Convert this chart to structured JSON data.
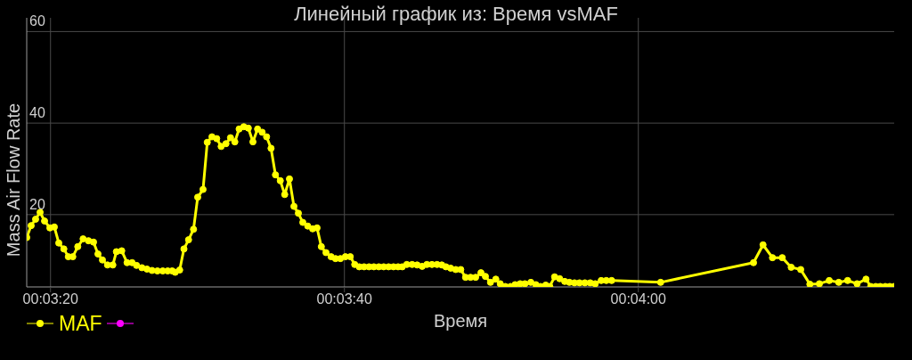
{
  "chart_data": {
    "type": "line",
    "title": "Линейный график из: Время vsMAF",
    "xlabel": "Время",
    "ylabel": "Mass Air Flow Rate",
    "x": [
      0.055106,
      0.05519,
      0.055274,
      0.055359,
      0.055443,
      0.055544,
      0.055628,
      0.055712,
      0.055808,
      0.055892,
      0.055977,
      0.056071,
      0.056172,
      0.056273,
      0.056369,
      0.056453,
      0.056537,
      0.056633,
      0.056734,
      0.056801,
      0.056902,
      0.057003,
      0.057098,
      0.057182,
      0.057283,
      0.057379,
      0.057475,
      0.057576,
      0.057677,
      0.057771,
      0.057855,
      0.057913,
      0.057997,
      0.058078,
      0.058165,
      0.058259,
      0.058338,
      0.058439,
      0.058519,
      0.058608,
      0.058697,
      0.058781,
      0.058872,
      0.058958,
      0.05904,
      0.059121,
      0.059209,
      0.059295,
      0.059382,
      0.05947,
      0.059556,
      0.05964,
      0.059724,
      0.059808,
      0.059899,
      0.059983,
      0.060072,
      0.060157,
      0.060241,
      0.060325,
      0.060418,
      0.06051,
      0.060594,
      0.060675,
      0.060763,
      0.060859,
      0.060943,
      0.061035,
      0.06113,
      0.061222,
      0.061306,
      0.061391,
      0.061483,
      0.061576,
      0.061668,
      0.061761,
      0.061854,
      0.061946,
      0.062039,
      0.062126,
      0.062205,
      0.06229,
      0.062391,
      0.062485,
      0.062581,
      0.06267,
      0.062766,
      0.062862,
      0.062951,
      0.06303,
      0.06312,
      0.063216,
      0.06331,
      0.063401,
      0.063495,
      0.063591,
      0.063692,
      0.063776,
      0.063872,
      0.063973,
      0.064057,
      0.064152,
      0.064253,
      0.064337,
      0.064433,
      0.064522,
      0.064635,
      0.064731,
      0.064815,
      0.064916,
      0.064993,
      0.065084,
      0.065179,
      0.065275,
      0.065364,
      0.06546,
      0.065556,
      0.065657,
      0.065758,
      0.065852,
      0.065965,
      0.066061,
      0.066162,
      0.067088,
      0.068844,
      0.069024,
      0.069202,
      0.069387,
      0.069556,
      0.069736,
      0.069909,
      0.070089,
      0.070275,
      0.070455,
      0.070623,
      0.070801,
      0.07097,
      0.071061,
      0.071155,
      0.071239,
      0.071335,
      0.071419,
      0.071503
    ],
    "series": [
      {
        "name": "MAF",
        "color": "#ffff00",
        "values": [
          15.0,
          17.6,
          19.0,
          20.5,
          18.6,
          17.1,
          17.3,
          13.8,
          12.5,
          10.8,
          10.8,
          13.0,
          14.7,
          14.3,
          14.0,
          11.4,
          10.1,
          9.0,
          9.0,
          11.9,
          12.1,
          9.5,
          9.5,
          8.9,
          8.4,
          8.1,
          7.8,
          7.7,
          7.7,
          7.7,
          7.7,
          7.4,
          7.9,
          12.5,
          14.5,
          16.8,
          23.8,
          25.5,
          35.8,
          37.0,
          36.6,
          34.9,
          35.5,
          36.8,
          35.9,
          38.7,
          39.2,
          38.9,
          35.9,
          38.7,
          38.0,
          37.0,
          34.5,
          28.7,
          27.4,
          24.4,
          27.8,
          21.8,
          20.3,
          18.3,
          17.5,
          16.9,
          17.1,
          13.0,
          11.7,
          10.8,
          10.4,
          10.4,
          10.8,
          10.8,
          9.1,
          8.6,
          8.6,
          8.6,
          8.6,
          8.6,
          8.6,
          8.6,
          8.6,
          8.6,
          8.6,
          9.1,
          9.1,
          9.0,
          8.7,
          9.1,
          9.1,
          9.1,
          9.0,
          8.6,
          8.3,
          8.0,
          8.0,
          6.3,
          6.3,
          6.3,
          7.3,
          6.5,
          5.2,
          5.9,
          4.9,
          4.3,
          4.3,
          4.7,
          4.9,
          4.9,
          5.2,
          4.7,
          4.3,
          4.6,
          4.3,
          6.4,
          6.0,
          5.4,
          5.2,
          5.1,
          5.1,
          5.1,
          5.1,
          4.9,
          5.6,
          5.6,
          5.6,
          5.2,
          9.5,
          13.4,
          10.6,
          10.6,
          8.5,
          8.0,
          4.8,
          4.9,
          5.6,
          5.2,
          5.6,
          4.9,
          5.9,
          4.3,
          4.3,
          4.3,
          4.3,
          4.3,
          4.3
        ]
      }
    ],
    "xlim": [
      0.055106,
      0.071503
    ],
    "ylim": [
      4.2,
      63
    ],
    "xticks": [
      {
        "value": 0.055556,
        "label": "00:03:20"
      },
      {
        "value": 0.061111,
        "label": "00:03:40"
      },
      {
        "value": 0.066667,
        "label": "00:04:00"
      }
    ],
    "yticks": [
      20,
      40,
      60
    ],
    "grid": true,
    "legend": "bottom left",
    "marker": "circle",
    "line_style": "solid"
  }
}
